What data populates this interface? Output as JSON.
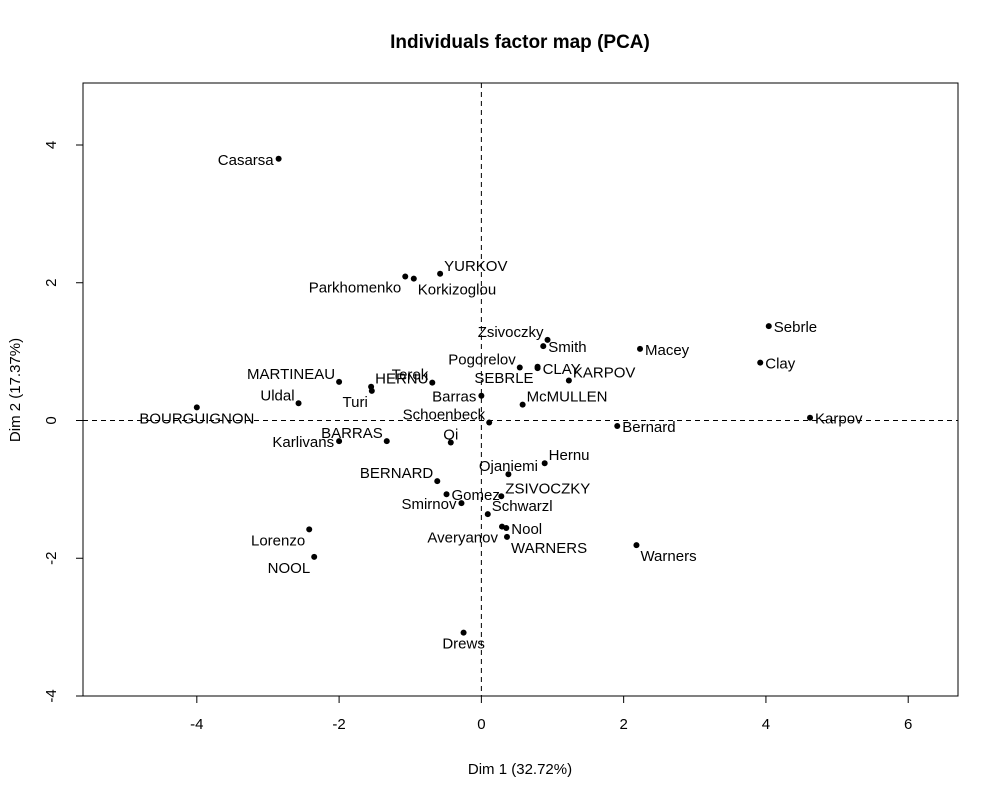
{
  "chart_data": {
    "type": "scatter",
    "title": "Individuals factor map (PCA)",
    "xlabel": "Dim 1 (32.72%)",
    "ylabel": "Dim 2 (17.37%)",
    "xlim": [
      -5.6,
      6.7
    ],
    "ylim": [
      -4.0,
      4.9
    ],
    "xticks": [
      -4,
      -2,
      0,
      2,
      4,
      6
    ],
    "yticks": [
      -4,
      -2,
      0,
      2,
      4
    ],
    "reference_lines": {
      "x": 0,
      "y": 0,
      "style": "dashed"
    },
    "grid": false,
    "legend": "none",
    "point_color": "#000000",
    "points": [
      {
        "label": "Casarsa",
        "x": -2.85,
        "y": 3.8,
        "pos": "left"
      },
      {
        "label": "YURKOV",
        "x": -0.58,
        "y": 2.13,
        "pos": "right-up"
      },
      {
        "label": "Parkhomenko",
        "x": -1.07,
        "y": 2.09,
        "pos": "left-down"
      },
      {
        "label": "Korkizoglou",
        "x": -0.95,
        "y": 2.06,
        "pos": "right-down"
      },
      {
        "label": "Zsivoczky",
        "x": 0.93,
        "y": 1.17,
        "pos": "left-up"
      },
      {
        "label": "Smith",
        "x": 0.87,
        "y": 1.08,
        "pos": "right"
      },
      {
        "label": "Sebrle",
        "x": 4.04,
        "y": 1.37,
        "pos": "right"
      },
      {
        "label": "Macey",
        "x": 2.23,
        "y": 1.04,
        "pos": "right"
      },
      {
        "label": "Clay",
        "x": 3.92,
        "y": 0.84,
        "pos": "right"
      },
      {
        "label": "Pogorelov",
        "x": 0.54,
        "y": 0.77,
        "pos": "left-up"
      },
      {
        "label": "CLAY",
        "x": 0.79,
        "y": 0.76,
        "pos": "right"
      },
      {
        "label": "SEBRLE",
        "x": 0.79,
        "y": 0.78,
        "pos": "left-down"
      },
      {
        "label": "KARPOV",
        "x": 1.23,
        "y": 0.58,
        "pos": "right-up"
      },
      {
        "label": "Terek",
        "x": -0.69,
        "y": 0.55,
        "pos": "left-up"
      },
      {
        "label": "MARTINEAU",
        "x": -2.0,
        "y": 0.56,
        "pos": "left-up"
      },
      {
        "label": "HERNU",
        "x": -1.55,
        "y": 0.49,
        "pos": "right-up"
      },
      {
        "label": "Turi",
        "x": -1.54,
        "y": 0.43,
        "pos": "left-down"
      },
      {
        "label": "Uldal",
        "x": -2.57,
        "y": 0.25,
        "pos": "left-up"
      },
      {
        "label": "Barras",
        "x": 0.0,
        "y": 0.36,
        "pos": "left"
      },
      {
        "label": "McMULLEN",
        "x": 0.58,
        "y": 0.23,
        "pos": "right-up"
      },
      {
        "label": "BOURGUIGNON",
        "x": -4.0,
        "y": 0.19,
        "pos": "down"
      },
      {
        "label": "Schoenbeck",
        "x": 0.11,
        "y": -0.03,
        "pos": "left-up"
      },
      {
        "label": "Karpov",
        "x": 4.62,
        "y": 0.04,
        "pos": "right"
      },
      {
        "label": "Bernard",
        "x": 1.91,
        "y": -0.08,
        "pos": "right"
      },
      {
        "label": "BARRAS",
        "x": -1.33,
        "y": -0.3,
        "pos": "left-up"
      },
      {
        "label": "Karlivans",
        "x": -2.0,
        "y": -0.3,
        "pos": "left"
      },
      {
        "label": "Qi",
        "x": -0.43,
        "y": -0.32,
        "pos": "up"
      },
      {
        "label": "Hernu",
        "x": 0.89,
        "y": -0.62,
        "pos": "right-up"
      },
      {
        "label": "Ojaniemi",
        "x": 0.38,
        "y": -0.78,
        "pos": "up"
      },
      {
        "label": "BERNARD",
        "x": -0.62,
        "y": -0.88,
        "pos": "left-up"
      },
      {
        "label": "ZSIVOCZKY",
        "x": 0.28,
        "y": -1.1,
        "pos": "right-up"
      },
      {
        "label": "Gomez",
        "x": -0.49,
        "y": -1.07,
        "pos": "right"
      },
      {
        "label": "Smirnov",
        "x": -0.28,
        "y": -1.2,
        "pos": "left"
      },
      {
        "label": "Schwarzl",
        "x": 0.09,
        "y": -1.36,
        "pos": "right-up"
      },
      {
        "label": "Nool",
        "x": 0.35,
        "y": -1.56,
        "pos": "right"
      },
      {
        "label": "Averyanov",
        "x": 0.29,
        "y": -1.54,
        "pos": "left-down"
      },
      {
        "label": "WARNERS",
        "x": 0.36,
        "y": -1.69,
        "pos": "right-down"
      },
      {
        "label": "Warners",
        "x": 2.18,
        "y": -1.81,
        "pos": "right-down"
      },
      {
        "label": "Lorenzo",
        "x": -2.42,
        "y": -1.58,
        "pos": "left-down"
      },
      {
        "label": "NOOL",
        "x": -2.35,
        "y": -1.98,
        "pos": "left-down"
      },
      {
        "label": "Drews",
        "x": -0.25,
        "y": -3.08,
        "pos": "down"
      }
    ]
  }
}
